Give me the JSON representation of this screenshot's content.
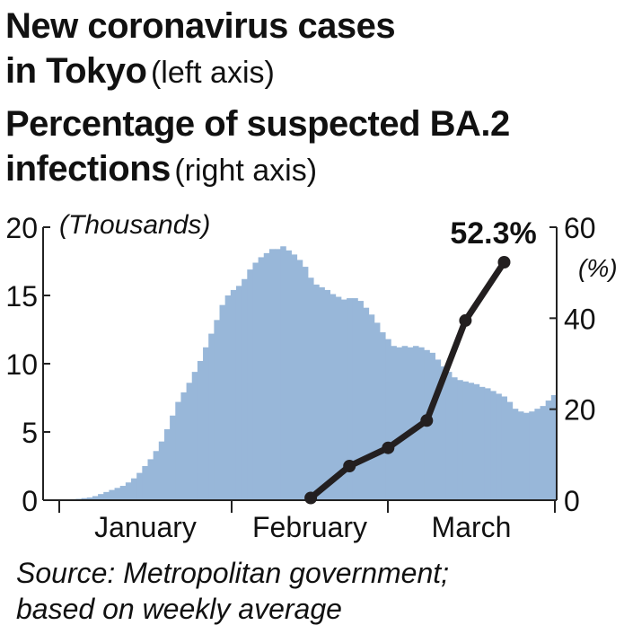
{
  "title": {
    "line1": "New coronavirus cases",
    "line2_bold": "in Tokyo",
    "line2_note": "(left axis)",
    "line3": "Percentage of suspected BA.2",
    "line4_bold": "infections",
    "line4_note": "(right axis)"
  },
  "source": {
    "line1": "Source: Metropolitan government;",
    "line2": "based on weekly average"
  },
  "chart_data": {
    "type": "bar",
    "colors": {
      "bars": "#98b7d9",
      "line": "#231f20",
      "axis": "#222222"
    },
    "left_axis": {
      "label": "(Thousands)",
      "ylim": [
        0,
        20
      ],
      "ticks": [
        0,
        5,
        10,
        15,
        20
      ]
    },
    "right_axis": {
      "label": "(%)",
      "ylim": [
        0,
        60
      ],
      "ticks": [
        0,
        20,
        40,
        60
      ]
    },
    "months": [
      "January",
      "February",
      "March"
    ],
    "series": [
      {
        "name": "New coronavirus cases in Tokyo",
        "axis": "left",
        "kind": "bar",
        "values": [
          0.05,
          0.06,
          0.08,
          0.1,
          0.15,
          0.2,
          0.3,
          0.45,
          0.6,
          0.75,
          0.9,
          1.05,
          1.3,
          1.6,
          2.0,
          2.5,
          3.0,
          3.6,
          4.3,
          5.2,
          6.2,
          7.2,
          7.9,
          8.6,
          9.4,
          10.2,
          11.2,
          12.2,
          13.2,
          14.3,
          15.0,
          15.4,
          15.7,
          16.2,
          16.9,
          17.4,
          17.8,
          18.1,
          18.4,
          18.4,
          18.6,
          18.3,
          18.0,
          17.6,
          17.1,
          16.3,
          15.8,
          15.6,
          15.4,
          15.1,
          14.9,
          14.7,
          14.8,
          14.8,
          14.6,
          14.1,
          13.6,
          13.0,
          12.3,
          11.8,
          11.3,
          11.2,
          11.3,
          11.2,
          11.3,
          11.2,
          11.0,
          10.8,
          10.3,
          9.8,
          9.4,
          9.0,
          8.8,
          8.7,
          8.6,
          8.5,
          8.3,
          8.2,
          8.0,
          7.8,
          7.6,
          7.2,
          6.7,
          6.5,
          6.4,
          6.5,
          6.7,
          6.9,
          7.3,
          7.7
        ]
      },
      {
        "name": "Percentage of suspected BA.2 infections",
        "axis": "right",
        "kind": "line",
        "points": [
          {
            "i": 45,
            "y": 0.5
          },
          {
            "i": 52,
            "y": 7.5
          },
          {
            "i": 59,
            "y": 11.5
          },
          {
            "i": 66,
            "y": 17.5
          },
          {
            "i": 73,
            "y": 39.5
          },
          {
            "i": 80,
            "y": 52.3
          }
        ]
      }
    ],
    "annotation": "52.3%",
    "grid": false
  }
}
